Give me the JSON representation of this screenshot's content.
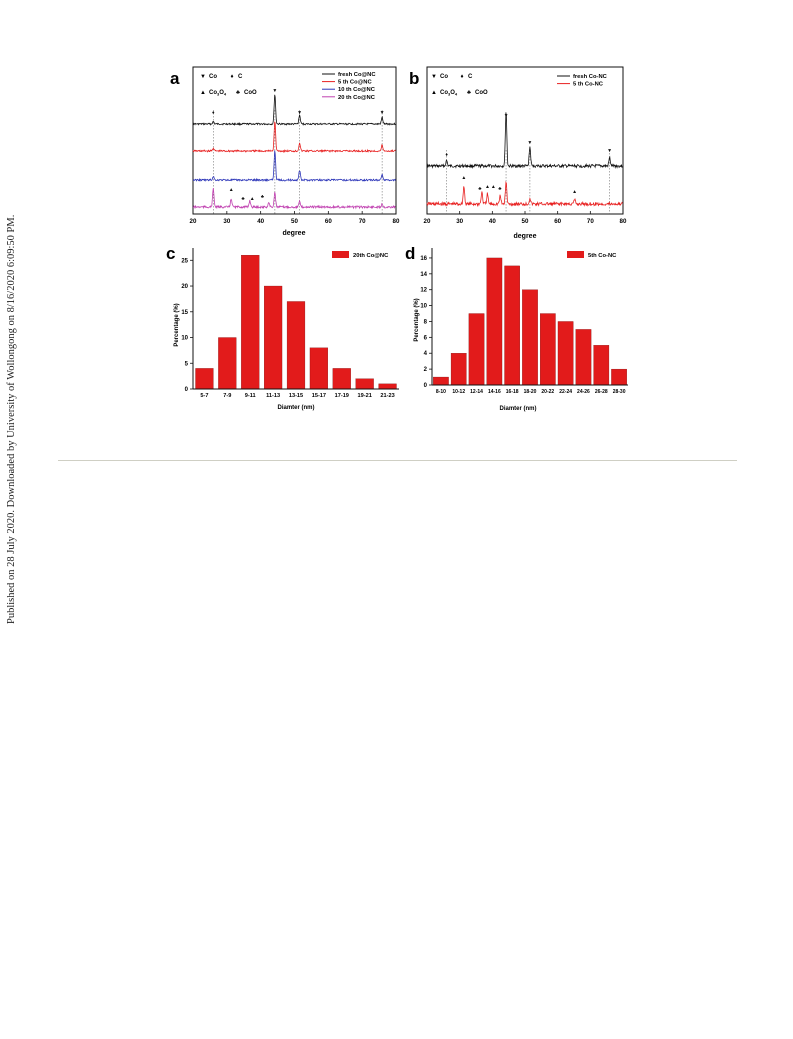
{
  "side_note": "Published on 28 July 2020. Downloaded by University of Wollongong on 8/16/2020 6:09:50 PM.",
  "colors": {
    "black": "#111111",
    "red": "#e82020",
    "blue": "#2b34b8",
    "magenta": "#c040b0",
    "bar": "#e21b1b"
  },
  "chart_data": [
    {
      "panel": "a",
      "type": "line",
      "xlabel": "degree",
      "xlim": [
        20,
        80
      ],
      "xticks": [
        20,
        30,
        40,
        50,
        60,
        70,
        80
      ],
      "grid": false,
      "legend_position": "top-right",
      "markers": [
        {
          "symbol": "▼",
          "label": "Co"
        },
        {
          "symbol": "♦",
          "label": "C"
        },
        {
          "symbol": "▲",
          "label": "Co3O4"
        },
        {
          "symbol": "♣",
          "label": "CoO"
        }
      ],
      "reference_lines": [
        26,
        44.2,
        51.5,
        75.9
      ],
      "series": [
        {
          "name": "fresh Co@NC",
          "color": "#111111",
          "peaks": [
            {
              "x": 26,
              "h": 0.08
            },
            {
              "x": 44.2,
              "h": 1.0
            },
            {
              "x": 51.5,
              "h": 0.3
            },
            {
              "x": 75.9,
              "h": 0.22
            }
          ]
        },
        {
          "name": "5 th  Co@NC",
          "color": "#e82020",
          "peaks": [
            {
              "x": 26,
              "h": 0.1
            },
            {
              "x": 44.2,
              "h": 1.0
            },
            {
              "x": 51.5,
              "h": 0.28
            },
            {
              "x": 75.9,
              "h": 0.2
            }
          ]
        },
        {
          "name": "10 th Co@NC",
          "color": "#2b34b8",
          "peaks": [
            {
              "x": 26,
              "h": 0.12
            },
            {
              "x": 44.2,
              "h": 1.0
            },
            {
              "x": 51.5,
              "h": 0.32
            },
            {
              "x": 75.9,
              "h": 0.2
            }
          ]
        },
        {
          "name": "20 th Co@NC",
          "color": "#c040b0",
          "peaks": [
            {
              "x": 26,
              "h": 0.6
            },
            {
              "x": 31.3,
              "h": 0.28
            },
            {
              "x": 36.8,
              "h": 0.22
            },
            {
              "x": 42.4,
              "h": 0.15
            },
            {
              "x": 44.2,
              "h": 0.5
            },
            {
              "x": 51.5,
              "h": 0.18
            },
            {
              "x": 75.9,
              "h": 0.12
            }
          ]
        }
      ]
    },
    {
      "panel": "b",
      "type": "line",
      "xlabel": "degree",
      "xlim": [
        20,
        80
      ],
      "xticks": [
        20,
        30,
        40,
        50,
        60,
        70,
        80
      ],
      "grid": false,
      "legend_position": "top-right",
      "markers": [
        {
          "symbol": "▼",
          "label": "Co"
        },
        {
          "symbol": "♦",
          "label": "C"
        },
        {
          "symbol": "▲",
          "label": "Co3O4"
        },
        {
          "symbol": "♣",
          "label": "CoO"
        }
      ],
      "reference_lines": [
        26,
        44.2,
        51.5,
        75.9
      ],
      "series": [
        {
          "name": "fresh Co-NC",
          "color": "#111111",
          "peaks": [
            {
              "x": 26,
              "h": 0.1
            },
            {
              "x": 44.2,
              "h": 1.0
            },
            {
              "x": 51.5,
              "h": 0.35
            },
            {
              "x": 75.9,
              "h": 0.15
            }
          ]
        },
        {
          "name": "5 th    Co-NC",
          "color": "#e82020",
          "peaks": [
            {
              "x": 31.3,
              "h": 0.45
            },
            {
              "x": 36.8,
              "h": 0.3
            },
            {
              "x": 38.5,
              "h": 0.25
            },
            {
              "x": 42.4,
              "h": 0.2
            },
            {
              "x": 44.2,
              "h": 0.55
            },
            {
              "x": 51.5,
              "h": 0.15
            },
            {
              "x": 65.2,
              "h": 0.1
            }
          ]
        }
      ]
    },
    {
      "panel": "c",
      "type": "bar",
      "categories": [
        "5-7",
        "7-9",
        "9-11",
        "11-13",
        "13-15",
        "15-17",
        "17-19",
        "19-21",
        "21-23"
      ],
      "values": [
        4,
        10,
        26,
        20,
        17,
        8,
        4,
        2,
        1
      ],
      "series": [
        {
          "name": "20th Co@NC",
          "values": [
            4,
            10,
            26,
            20,
            17,
            8,
            4,
            2,
            1
          ]
        }
      ],
      "xlabel": "Diamter (nm)",
      "ylabel": "Percentage (%)",
      "ylim": [
        0,
        27
      ],
      "yticks": [
        0,
        5,
        10,
        15,
        20,
        25
      ],
      "grid": false,
      "legend_position": "top-right"
    },
    {
      "panel": "d",
      "type": "bar",
      "categories": [
        "8-10",
        "10-12",
        "12-14",
        "14-16",
        "16-18",
        "18-20",
        "20-22",
        "22-24",
        "24-26",
        "26-28",
        "28-30"
      ],
      "values": [
        1,
        4,
        9,
        16,
        15,
        12,
        9,
        8,
        7,
        5,
        2
      ],
      "series": [
        {
          "name": "5th Co-NC",
          "values": [
            1,
            4,
            9,
            16,
            15,
            12,
            9,
            8,
            7,
            5,
            2
          ]
        }
      ],
      "xlabel": "Diamter (nm)",
      "ylabel": "Percentage (%)",
      "ylim": [
        0,
        17
      ],
      "yticks": [
        0,
        2,
        4,
        6,
        8,
        10,
        12,
        14,
        16
      ],
      "grid": false,
      "legend_position": "top-right"
    }
  ]
}
